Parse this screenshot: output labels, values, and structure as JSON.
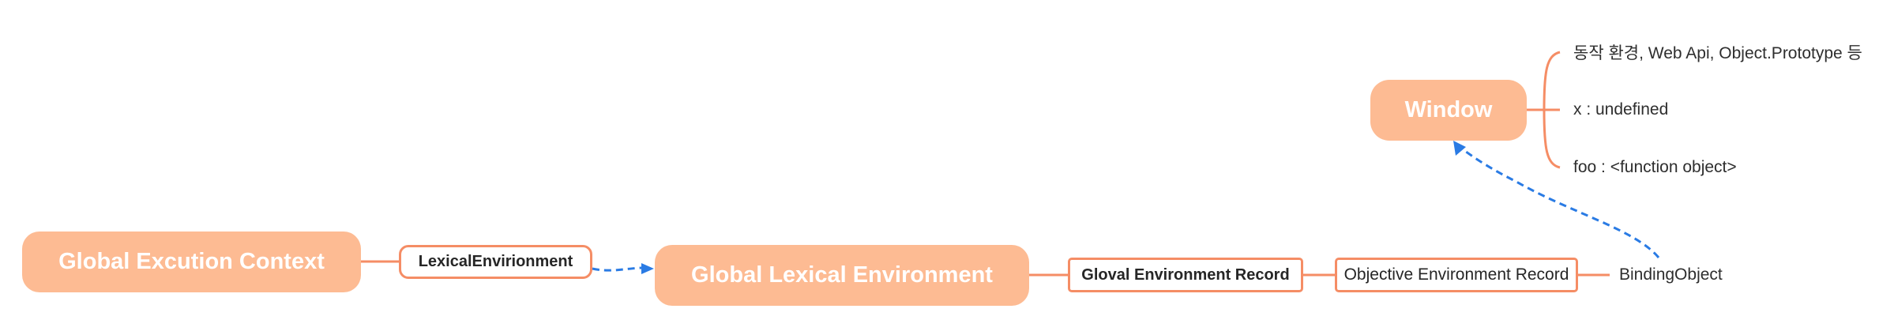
{
  "diagram": {
    "root": "Global Excution Context",
    "lexical_link_label": "LexicalEnvirionment",
    "global_lexical_environment": "Global Lexical Environment",
    "global_record": "Gloval Environment Record",
    "objective_record": "Objective Environment Record",
    "binding_object": "BindingObject",
    "window": "Window",
    "window_children": [
      "동작 환경, Web Api, Object.Prototype 등",
      "x : undefined",
      "foo : <function object>"
    ]
  },
  "colors": {
    "main_fill": "#fdbb93",
    "line": "#f58d65",
    "dashed_arrow": "#2a7be4",
    "text_dark": "#262626"
  }
}
